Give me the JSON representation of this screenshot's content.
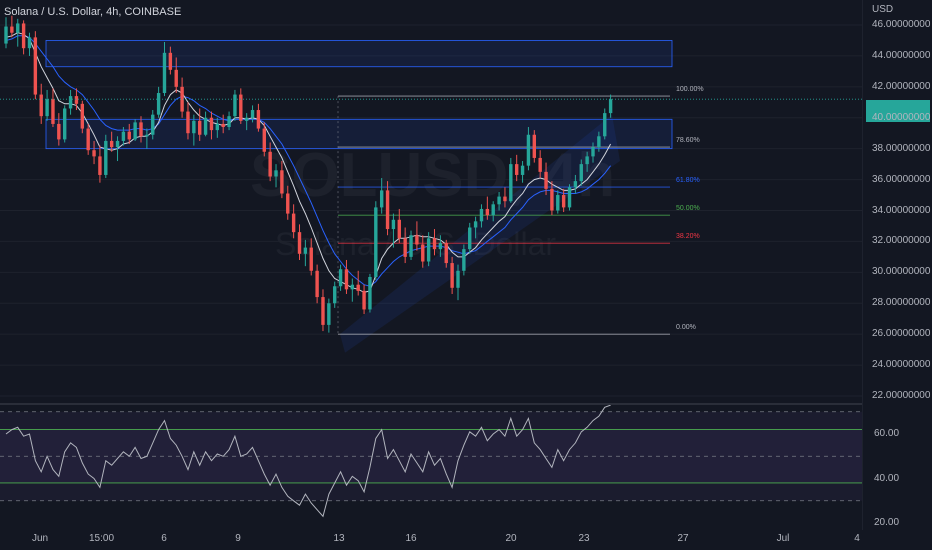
{
  "header": {
    "title": "Solana / U.S. Dollar, 4h, COINBASE"
  },
  "watermark": {
    "symbol": "SOLUSD, 4h",
    "subtitle": "Solana / U.S. Dollar"
  },
  "price_axis": {
    "currency": "USD",
    "ticks": [
      "46.00000000",
      "44.00000000",
      "42.00000000",
      "40.00000000",
      "38.00000000",
      "36.00000000",
      "34.00000000",
      "32.00000000",
      "30.00000000",
      "28.00000000",
      "26.00000000",
      "24.00000000",
      "22.00000000"
    ]
  },
  "rsi_axis": {
    "ticks": [
      "60.00",
      "40.00",
      "20.00"
    ]
  },
  "time_axis": {
    "labels": [
      "Jun",
      "15:00",
      "6",
      "9",
      "13",
      "16",
      "20",
      "23",
      "27",
      "Jul",
      "4"
    ]
  },
  "fib_levels": [
    {
      "label": "100.00%",
      "color": "#b2b5be"
    },
    {
      "label": "78.60%",
      "color": "#b2b5be"
    },
    {
      "label": "61.80%",
      "color": "#2962ff"
    },
    {
      "label": "50.00%",
      "color": "#4caf50"
    },
    {
      "label": "38.20%",
      "color": "#f23645"
    },
    {
      "label": "0.00%",
      "color": "#b2b5be"
    }
  ],
  "colors": {
    "up": "#26a69a",
    "down": "#ef5350",
    "background": "#131722",
    "ma": "#2962ff"
  },
  "chart_data": {
    "type": "candlestick",
    "ylim": [
      22,
      47
    ],
    "ohlc": [
      [
        44.8,
        46.5,
        44.5,
        45.9
      ],
      [
        45.9,
        46.6,
        45.2,
        45.5
      ],
      [
        45.5,
        46.4,
        44.6,
        46.1
      ],
      [
        46.1,
        46.3,
        44.1,
        44.5
      ],
      [
        44.5,
        45.5,
        44.0,
        45.2
      ],
      [
        45.2,
        45.6,
        41.2,
        41.5
      ],
      [
        41.5,
        42.2,
        39.6,
        40.1
      ],
      [
        40.1,
        41.8,
        39.8,
        41.2
      ],
      [
        41.2,
        41.9,
        39.4,
        39.6
      ],
      [
        39.6,
        40.3,
        38.2,
        38.6
      ],
      [
        38.6,
        40.8,
        38.4,
        40.6
      ],
      [
        40.6,
        41.8,
        40.2,
        41.4
      ],
      [
        41.4,
        41.9,
        40.5,
        40.9
      ],
      [
        40.9,
        41.1,
        39.0,
        39.3
      ],
      [
        39.3,
        39.6,
        37.6,
        37.9
      ],
      [
        37.9,
        38.5,
        37.0,
        37.5
      ],
      [
        37.5,
        38.2,
        35.8,
        36.3
      ],
      [
        36.3,
        38.9,
        36.1,
        38.5
      ],
      [
        38.5,
        39.1,
        37.8,
        38.1
      ],
      [
        38.1,
        38.8,
        37.2,
        38.5
      ],
      [
        38.5,
        39.4,
        38.2,
        39.1
      ],
      [
        39.1,
        39.6,
        38.3,
        38.6
      ],
      [
        38.6,
        39.9,
        38.5,
        39.7
      ],
      [
        39.7,
        40.1,
        38.4,
        38.8
      ],
      [
        38.8,
        39.3,
        38.0,
        38.9
      ],
      [
        38.9,
        40.5,
        38.6,
        40.2
      ],
      [
        40.2,
        42.0,
        40.0,
        41.6
      ],
      [
        41.6,
        44.9,
        41.4,
        44.2
      ],
      [
        44.2,
        44.6,
        42.8,
        43.1
      ],
      [
        43.1,
        43.9,
        41.6,
        42.0
      ],
      [
        42.0,
        42.6,
        40.0,
        40.4
      ],
      [
        40.4,
        41.0,
        38.6,
        39.0
      ],
      [
        39.0,
        40.2,
        38.2,
        39.8
      ],
      [
        39.8,
        40.6,
        38.5,
        38.9
      ],
      [
        38.9,
        40.4,
        38.8,
        40.0
      ],
      [
        40.0,
        40.4,
        38.6,
        39.2
      ],
      [
        39.2,
        40.0,
        38.7,
        39.6
      ],
      [
        39.6,
        40.2,
        39.0,
        39.4
      ],
      [
        39.4,
        40.4,
        39.2,
        40.1
      ],
      [
        40.1,
        41.8,
        39.8,
        41.5
      ],
      [
        41.5,
        41.9,
        39.6,
        39.8
      ],
      [
        39.8,
        40.3,
        39.2,
        40.0
      ],
      [
        40.0,
        40.8,
        39.7,
        40.5
      ],
      [
        40.5,
        40.9,
        39.1,
        39.3
      ],
      [
        39.3,
        39.7,
        37.5,
        37.8
      ],
      [
        37.8,
        38.4,
        35.9,
        36.2
      ],
      [
        36.2,
        37.0,
        35.5,
        36.6
      ],
      [
        36.6,
        37.2,
        34.8,
        35.1
      ],
      [
        35.1,
        35.6,
        33.4,
        33.8
      ],
      [
        33.8,
        34.4,
        32.2,
        32.6
      ],
      [
        32.6,
        33.1,
        30.8,
        31.2
      ],
      [
        31.2,
        32.1,
        30.4,
        31.6
      ],
      [
        31.6,
        32.2,
        29.8,
        30.1
      ],
      [
        30.1,
        30.5,
        28.0,
        28.4
      ],
      [
        28.4,
        28.9,
        26.2,
        26.6
      ],
      [
        26.6,
        28.3,
        26.1,
        28.0
      ],
      [
        28.0,
        29.4,
        27.7,
        29.1
      ],
      [
        29.1,
        30.5,
        28.8,
        30.2
      ],
      [
        30.2,
        30.8,
        28.6,
        28.9
      ],
      [
        28.9,
        29.6,
        28.1,
        29.2
      ],
      [
        29.2,
        30.1,
        28.5,
        28.8
      ],
      [
        28.8,
        29.2,
        27.3,
        27.6
      ],
      [
        27.6,
        29.9,
        27.4,
        29.7
      ],
      [
        29.7,
        34.6,
        29.5,
        34.2
      ],
      [
        34.2,
        36.1,
        33.8,
        35.3
      ],
      [
        35.3,
        35.9,
        32.4,
        32.8
      ],
      [
        32.8,
        33.8,
        31.6,
        33.4
      ],
      [
        33.4,
        34.1,
        31.9,
        32.2
      ],
      [
        32.2,
        32.9,
        30.6,
        31.0
      ],
      [
        31.0,
        32.7,
        30.8,
        32.4
      ],
      [
        32.4,
        33.3,
        31.4,
        31.8
      ],
      [
        31.8,
        32.4,
        30.3,
        30.7
      ],
      [
        30.7,
        32.6,
        30.4,
        32.2
      ],
      [
        32.2,
        32.8,
        31.1,
        31.5
      ],
      [
        31.5,
        32.4,
        31.0,
        31.9
      ],
      [
        31.9,
        32.1,
        30.3,
        30.6
      ],
      [
        30.6,
        31.0,
        28.6,
        29.0
      ],
      [
        29.0,
        30.5,
        28.2,
        30.1
      ],
      [
        30.1,
        31.8,
        29.8,
        31.5
      ],
      [
        31.5,
        33.2,
        31.2,
        32.9
      ],
      [
        32.9,
        33.6,
        32.2,
        33.3
      ],
      [
        33.3,
        34.4,
        32.9,
        34.1
      ],
      [
        34.1,
        34.9,
        33.4,
        33.7
      ],
      [
        33.7,
        34.6,
        33.3,
        34.4
      ],
      [
        34.4,
        35.2,
        34.0,
        34.9
      ],
      [
        34.9,
        35.5,
        34.2,
        34.6
      ],
      [
        34.6,
        37.4,
        34.5,
        37.0
      ],
      [
        37.0,
        37.6,
        35.9,
        36.3
      ],
      [
        36.3,
        37.2,
        35.8,
        36.9
      ],
      [
        36.9,
        39.4,
        36.6,
        38.9
      ],
      [
        38.9,
        39.2,
        37.1,
        37.4
      ],
      [
        37.4,
        37.9,
        36.1,
        36.5
      ],
      [
        36.5,
        37.1,
        35.0,
        35.4
      ],
      [
        35.4,
        35.9,
        33.7,
        34.0
      ],
      [
        34.0,
        35.3,
        33.8,
        35.0
      ],
      [
        35.0,
        35.4,
        33.9,
        34.2
      ],
      [
        34.2,
        35.7,
        34.0,
        35.5
      ],
      [
        35.5,
        36.3,
        35.1,
        35.9
      ],
      [
        35.9,
        37.3,
        35.6,
        37.0
      ],
      [
        37.0,
        37.8,
        36.5,
        37.5
      ],
      [
        37.5,
        38.4,
        37.1,
        38.1
      ],
      [
        38.1,
        39.1,
        37.8,
        38.8
      ],
      [
        38.8,
        40.6,
        38.6,
        40.3
      ],
      [
        40.3,
        41.5,
        40.0,
        41.2
      ]
    ],
    "ma_fast": [
      45.2,
      45.3,
      45.5,
      45.4,
      45.1,
      44.2,
      43.3,
      42.6,
      41.9,
      41.1,
      40.9,
      40.9,
      40.8,
      40.3,
      39.6,
      38.9,
      38.1,
      38.0,
      37.9,
      38.0,
      38.3,
      38.4,
      38.7,
      38.8,
      38.8,
      39.1,
      39.7,
      40.8,
      41.5,
      41.8,
      41.6,
      41.0,
      40.5,
      40.1,
      39.9,
      39.7,
      39.6,
      39.5,
      39.6,
      40.0,
      40.0,
      39.9,
      40.0,
      39.9,
      39.5,
      38.8,
      38.1,
      37.4,
      36.5,
      35.6,
      34.6,
      33.8,
      32.9,
      31.9,
      30.9,
      30.1,
      29.6,
      29.4,
      29.2,
      29.0,
      28.9,
      28.7,
      28.8,
      29.8,
      30.9,
      31.5,
      31.9,
      32.2,
      32.2,
      32.3,
      32.4,
      32.3,
      32.3,
      32.2,
      32.1,
      31.8,
      31.3,
      31.0,
      31.0,
      31.3,
      31.6,
      32.1,
      32.5,
      32.9,
      33.3,
      33.6,
      34.2,
      34.7,
      35.1,
      35.7,
      36.0,
      36.1,
      36.0,
      35.7,
      35.5,
      35.3,
      35.3,
      35.4,
      35.7,
      36.0,
      36.5,
      37.0,
      37.6,
      38.3
    ],
    "ma_slow": [
      45.0,
      45.1,
      45.3,
      45.3,
      45.2,
      44.8,
      44.3,
      43.8,
      43.3,
      42.7,
      42.3,
      42.0,
      41.8,
      41.5,
      41.0,
      40.5,
      39.9,
      39.5,
      39.3,
      39.2,
      39.2,
      39.2,
      39.3,
      39.3,
      39.2,
      39.3,
      39.6,
      40.2,
      40.8,
      41.2,
      41.4,
      41.3,
      41.1,
      40.8,
      40.6,
      40.3,
      40.1,
      39.9,
      39.8,
      39.9,
      39.9,
      39.9,
      39.9,
      39.9,
      39.7,
      39.3,
      38.8,
      38.3,
      37.6,
      36.9,
      36.1,
      35.3,
      34.5,
      33.6,
      32.7,
      31.9,
      31.2,
      30.7,
      30.2,
      29.8,
      29.5,
      29.2,
      29.1,
      29.4,
      29.9,
      30.3,
      30.7,
      31.0,
      31.2,
      31.4,
      31.5,
      31.6,
      31.7,
      31.7,
      31.7,
      31.6,
      31.4,
      31.3,
      31.2,
      31.3,
      31.4,
      31.7,
      32.0,
      32.3,
      32.6,
      32.9,
      33.4,
      33.8,
      34.2,
      34.7,
      35.0,
      35.2,
      35.3,
      35.3,
      35.2,
      35.1,
      35.1,
      35.1,
      35.2,
      35.4,
      35.7,
      36.0,
      36.4,
      36.9
    ],
    "fib": {
      "p100": 41.4,
      "p0": 26.0,
      "levels": [
        1.0,
        0.786,
        0.618,
        0.5,
        0.382,
        0.0
      ]
    },
    "rsi": {
      "ylim": [
        18,
        76
      ],
      "overbought": 70,
      "oversold": 30,
      "band_high": 62,
      "band_low": 38,
      "values": [
        60,
        62,
        63,
        59,
        60,
        48,
        43,
        50,
        44,
        41,
        52,
        56,
        54,
        47,
        42,
        40,
        36,
        48,
        46,
        49,
        52,
        50,
        54,
        49,
        50,
        56,
        62,
        66,
        58,
        55,
        50,
        44,
        52,
        46,
        52,
        48,
        51,
        50,
        53,
        59,
        50,
        51,
        54,
        48,
        42,
        37,
        42,
        36,
        32,
        30,
        28,
        33,
        29,
        26,
        23,
        33,
        38,
        43,
        37,
        41,
        39,
        34,
        45,
        58,
        62,
        49,
        53,
        48,
        43,
        51,
        47,
        43,
        52,
        46,
        49,
        42,
        36,
        48,
        55,
        61,
        59,
        63,
        57,
        60,
        62,
        59,
        67,
        59,
        62,
        67,
        56,
        53,
        49,
        45,
        53,
        48,
        53,
        56,
        61,
        63,
        66,
        68,
        72,
        73
      ]
    }
  }
}
